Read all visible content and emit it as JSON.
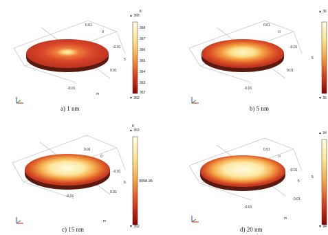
{
  "colors": {
    "cold": "#8b0000",
    "mid_red": "#d43a1e",
    "orange": "#f59a3a",
    "hot": "#fff8c8",
    "disk_edge": "#5a1a10",
    "grid": "#c8c8c8",
    "axis_x": "#d02020",
    "axis_y": "#2a9a2a",
    "axis_z": "#2040c0"
  },
  "panels": [
    {
      "caption": "a) 1 nm",
      "cb_max": "368",
      "cb_min": "362",
      "cb_ticks": [
        "368",
        "367",
        "366",
        "365",
        "364",
        "363",
        "362"
      ],
      "cb_mid_label": "",
      "cb_unit": "K",
      "hot_spot_fraction": 0.12,
      "axis_ticks": [
        "0.01",
        "0",
        "-0.01",
        "5",
        "0.01",
        "-0.01"
      ],
      "axis_unit": "m"
    },
    {
      "caption": "b) 5 nm",
      "cb_max": "36",
      "cb_min": "35",
      "cb_ticks": [
        "5"
      ],
      "cb_mid_label": "",
      "cb_unit": "K",
      "hot_spot_fraction": 0.35,
      "axis_ticks": [
        "0.01",
        "0",
        "-0.01",
        "5",
        "0.01",
        "-0.01"
      ],
      "axis_unit": "m"
    },
    {
      "caption": "c) 15 nm",
      "cb_max": "353",
      "cb_min": "352",
      "cb_ticks": [],
      "cb_mid_label": "0058.35",
      "cb_unit": "K",
      "hot_spot_fraction": 0.55,
      "axis_ticks": [
        "0.01",
        "0",
        "-0.01",
        "5",
        "0.01",
        "-0.01"
      ],
      "axis_unit": "m"
    },
    {
      "caption": "d) 20 nm",
      "cb_max": "34",
      "cb_min": "34",
      "cb_ticks": [
        "5"
      ],
      "cb_mid_label": "",
      "cb_unit": "K",
      "hot_spot_fraction": 0.62,
      "axis_ticks": [
        "0.01",
        "0",
        "-0.01",
        "5",
        "0.01",
        "-0.01"
      ],
      "axis_unit": "m"
    }
  ]
}
